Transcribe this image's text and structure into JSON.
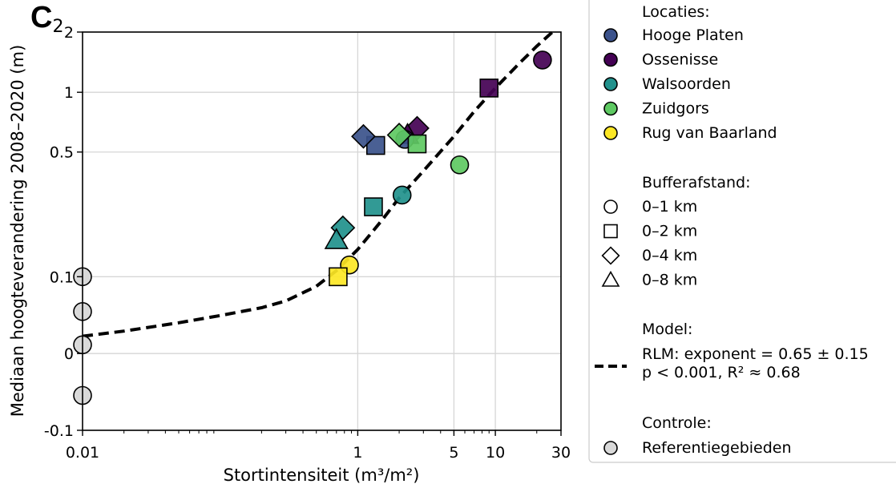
{
  "panel": {
    "letter": "C",
    "subscript": "2"
  },
  "chart_data": {
    "type": "scatter",
    "xlabel": "Stortintensiteit (m³/m²)",
    "ylabel": "Mediaan hoogteverandering 2008–2020 (m)",
    "xscale": "log",
    "yscale": "asinh",
    "xlim": [
      0.01,
      30
    ],
    "ylim": [
      -0.1,
      2
    ],
    "xticks": [
      {
        "value": 0.01,
        "label": "0.01"
      },
      {
        "value": 1,
        "label": "1"
      },
      {
        "value": 5,
        "label": "5"
      },
      {
        "value": 10,
        "label": "10"
      },
      {
        "value": 30,
        "label": "30"
      }
    ],
    "yticks": [
      {
        "value": -0.1,
        "label": "-0.1"
      },
      {
        "value": 0,
        "label": "0"
      },
      {
        "value": 0.1,
        "label": "0.1"
      },
      {
        "value": 0.5,
        "label": "0.5"
      },
      {
        "value": 1,
        "label": "1"
      },
      {
        "value": 2,
        "label": "2"
      }
    ],
    "grid": true,
    "legend_position": "right, outside plot",
    "colors": {
      "Hooge Platen": "#3b528b",
      "Ossenisse": "#440154",
      "Walsoorden": "#21918c",
      "Zuidgors": "#5ec962",
      "Rug van Baarland": "#fde725",
      "Referentiegebieden": "#d9d9d9"
    },
    "points": [
      {
        "location": "Ossenisse",
        "buffer": "0–1 km",
        "x": 22,
        "y": 1.45
      },
      {
        "location": "Ossenisse",
        "buffer": "0–2 km",
        "x": 9,
        "y": 1.05
      },
      {
        "location": "Ossenisse",
        "buffer": "0–4 km",
        "x": 2.7,
        "y": 0.66
      },
      {
        "location": "Ossenisse",
        "buffer": "0–8 km",
        "x": 2.3,
        "y": 0.61
      },
      {
        "location": "Hooge Platen",
        "buffer": "0–1 km",
        "x": 2.2,
        "y": 0.58
      },
      {
        "location": "Hooge Platen",
        "buffer": "0–2 km",
        "x": 1.35,
        "y": 0.54
      },
      {
        "location": "Hooge Platen",
        "buffer": "0–4 km",
        "x": 1.1,
        "y": 0.6
      },
      {
        "location": "Zuidgors",
        "buffer": "0–1 km",
        "x": 5.5,
        "y": 0.43
      },
      {
        "location": "Zuidgors",
        "buffer": "0–2 km",
        "x": 2.7,
        "y": 0.55
      },
      {
        "location": "Zuidgors",
        "buffer": "0–4 km",
        "x": 2.0,
        "y": 0.61
      },
      {
        "location": "Walsoorden",
        "buffer": "0–1 km",
        "x": 2.1,
        "y": 0.3
      },
      {
        "location": "Walsoorden",
        "buffer": "0–2 km",
        "x": 1.3,
        "y": 0.26
      },
      {
        "location": "Walsoorden",
        "buffer": "0–4 km",
        "x": 0.78,
        "y": 0.2
      },
      {
        "location": "Walsoorden",
        "buffer": "0–8 km",
        "x": 0.7,
        "y": 0.17
      },
      {
        "location": "Rug van Baarland",
        "buffer": "0–1 km",
        "x": 0.87,
        "y": 0.12
      },
      {
        "location": "Rug van Baarland",
        "buffer": "0–2 km",
        "x": 0.72,
        "y": 0.1
      },
      {
        "location": "Referentiegebieden",
        "buffer": "0–1 km",
        "x": 0.01,
        "y": 0.1
      },
      {
        "location": "Referentiegebieden",
        "buffer": "0–1 km",
        "x": 0.01,
        "y": 0.05
      },
      {
        "location": "Referentiegebieden",
        "buffer": "0–1 km",
        "x": 0.01,
        "y": 0.01
      },
      {
        "location": "Referentiegebieden",
        "buffer": "0–1 km",
        "x": 0.01,
        "y": -0.05
      }
    ],
    "model": {
      "style": "dashed",
      "color": "#000000",
      "curve": [
        {
          "x": 0.01,
          "y": 0.02
        },
        {
          "x": 0.02,
          "y": 0.026
        },
        {
          "x": 0.05,
          "y": 0.036
        },
        {
          "x": 0.1,
          "y": 0.045
        },
        {
          "x": 0.2,
          "y": 0.055
        },
        {
          "x": 0.3,
          "y": 0.064
        },
        {
          "x": 0.5,
          "y": 0.085
        },
        {
          "x": 0.7,
          "y": 0.11
        },
        {
          "x": 1,
          "y": 0.15
        },
        {
          "x": 1.5,
          "y": 0.22
        },
        {
          "x": 2,
          "y": 0.29
        },
        {
          "x": 3,
          "y": 0.4
        },
        {
          "x": 5,
          "y": 0.6
        },
        {
          "x": 7,
          "y": 0.8
        },
        {
          "x": 10,
          "y": 1.05
        },
        {
          "x": 15,
          "y": 1.4
        },
        {
          "x": 20,
          "y": 1.7
        },
        {
          "x": 26,
          "y": 2.0
        }
      ]
    }
  },
  "legend": {
    "locations_title": "Locaties:",
    "locations": [
      {
        "label": "Hooge Platen",
        "color": "#3b528b"
      },
      {
        "label": "Ossenisse",
        "color": "#440154"
      },
      {
        "label": "Walsoorden",
        "color": "#21918c"
      },
      {
        "label": "Zuidgors",
        "color": "#5ec962"
      },
      {
        "label": "Rug van Baarland",
        "color": "#fde725"
      }
    ],
    "buffers_title": "Bufferafstand:",
    "buffers": [
      {
        "label": "0–1 km",
        "marker": "circle"
      },
      {
        "label": "0–2 km",
        "marker": "square"
      },
      {
        "label": "0–4 km",
        "marker": "diamond"
      },
      {
        "label": "0–8 km",
        "marker": "triangle"
      }
    ],
    "model_title": "Model:",
    "model_line1": "RLM: exponent = 0.65 ± 0.15",
    "model_line2": "p < 0.001, R² ≈ 0.68",
    "control_title": "Controle:",
    "control_label": "Referentiegebieden",
    "control_color": "#d9d9d9"
  }
}
